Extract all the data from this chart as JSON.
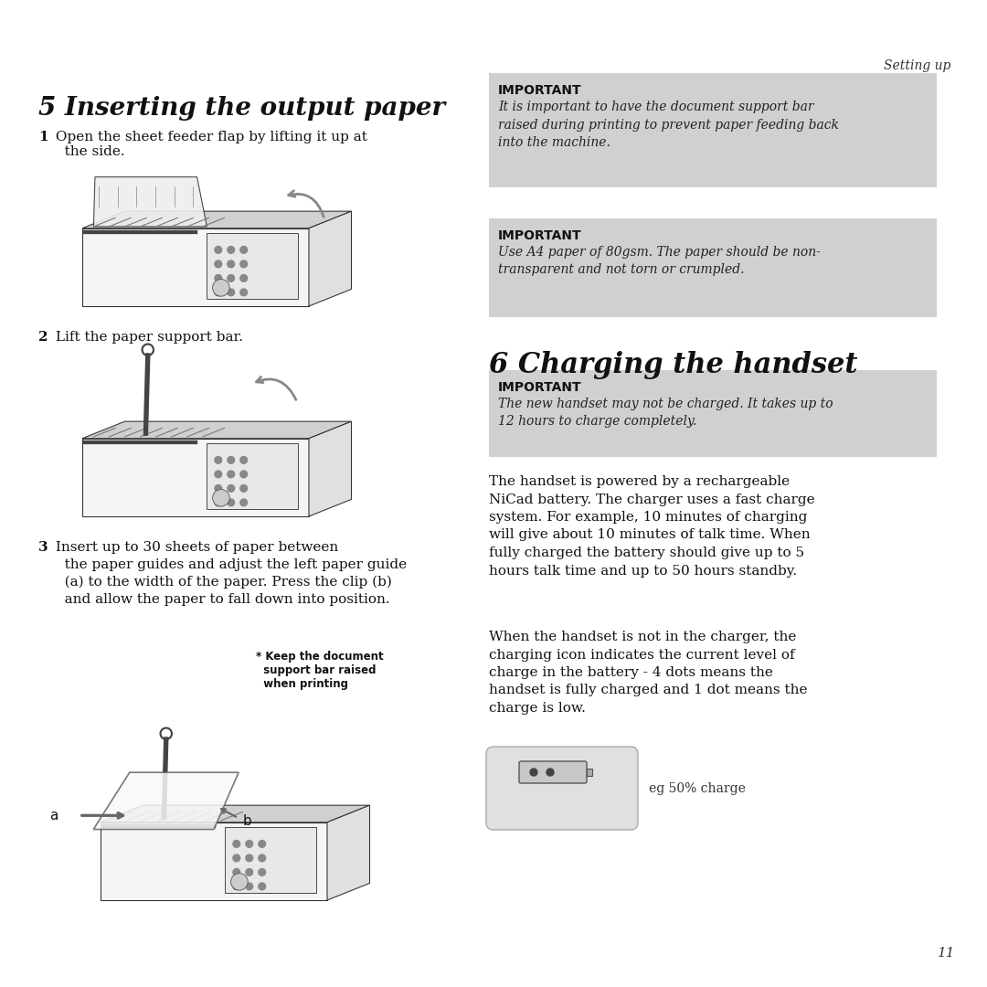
{
  "bg_color": "#ffffff",
  "header_italic": "Setting up",
  "section1_title": "5 Inserting the output paper",
  "step1_bold": "1",
  "step1_text": " Open the sheet feeder flap by lifting it up at\n   the side.",
  "step2_bold": "2",
  "step2_text": " Lift the paper support bar.",
  "step3_bold": "3",
  "step3_text": " Insert up to 30 sheets of paper between\n   the paper guides and adjust the left paper guide\n   (a) to the width of the paper. Press the clip (b)\n   and allow the paper to fall down into position.",
  "callout_text": "* Keep the document\n  support bar raised\n  when printing",
  "label_a": "a",
  "label_b": "b",
  "important_box_color": "#d0d0d0",
  "important1_title": "IMPORTANT",
  "important1_text": "It is important to have the document support bar\nraised during printing to prevent paper feeding back\ninto the machine.",
  "important2_title": "IMPORTANT",
  "important2_text": "Use A4 paper of 80gsm. The paper should be non-\ntransparent and not torn or crumpled.",
  "section2_title": "6 Charging the handset",
  "important3_title": "IMPORTANT",
  "important3_text": "The new handset may not be charged. It takes up to\n12 hours to charge completely.",
  "body_text1": "The handset is powered by a rechargeable\nNiCad battery. The charger uses a fast charge\nsystem. For example, 10 minutes of charging\nwill give about 10 minutes of talk time. When\nfully charged the battery should give up to 5\nhours talk time and up to 50 hours standby.",
  "body_text2": "When the handset is not in the charger, the\ncharging icon indicates the current level of\ncharge in the battery - 4 dots means the\nhandset is fully charged and 1 dot means the\ncharge is low.",
  "battery_label": "eg 50% charge",
  "page_number": "11"
}
